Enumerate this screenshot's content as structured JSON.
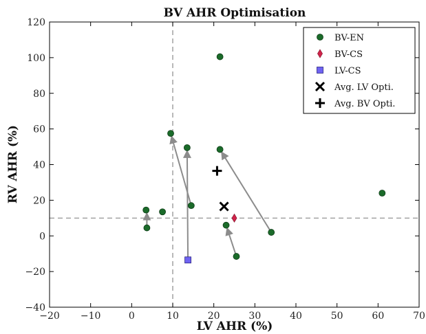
{
  "chart_data": {
    "type": "scatter",
    "title": "BV AHR Optimisation",
    "xlabel": "LV AHR (%)",
    "ylabel": "RV AHR (%)",
    "xlim": [
      -20,
      70
    ],
    "ylim": [
      -40,
      120
    ],
    "xticks": [
      -20,
      -10,
      0,
      10,
      20,
      30,
      40,
      50,
      60,
      70
    ],
    "xtick_labels": [
      "−20",
      "−10",
      "0",
      "10",
      "20",
      "30",
      "40",
      "50",
      "60",
      "70"
    ],
    "yticks": [
      -40,
      -20,
      0,
      20,
      40,
      60,
      80,
      100,
      120
    ],
    "ytick_labels": [
      "−40",
      "−20",
      "0",
      "20",
      "40",
      "60",
      "80",
      "100",
      "120"
    ],
    "grid": false,
    "legend_position": "top-right",
    "reference_lines": [
      {
        "orientation": "vertical",
        "x": 10,
        "style": "dashed",
        "color": "#888888"
      },
      {
        "orientation": "horizontal",
        "y": 10,
        "style": "dashed",
        "color": "#888888"
      }
    ],
    "series": [
      {
        "name": "BV-EN",
        "marker": "circle",
        "color": "#1b6b2a",
        "points": [
          {
            "x": 21.5,
            "y": 100.5
          },
          {
            "x": 9.5,
            "y": 57.5
          },
          {
            "x": 13.5,
            "y": 49.5
          },
          {
            "x": 21.5,
            "y": 48.5
          },
          {
            "x": 61,
            "y": 24
          },
          {
            "x": 14.5,
            "y": 17
          },
          {
            "x": 3.5,
            "y": 14.5
          },
          {
            "x": 7.5,
            "y": 13.5
          },
          {
            "x": 23,
            "y": 6
          },
          {
            "x": 34,
            "y": 2
          },
          {
            "x": 3.7,
            "y": 4.5
          },
          {
            "x": 25.5,
            "y": -11.5
          }
        ]
      },
      {
        "name": "BV-CS",
        "marker": "diamond",
        "color": "#d0234a",
        "points": [
          {
            "x": 25,
            "y": 10
          }
        ]
      },
      {
        "name": "LV-CS",
        "marker": "square",
        "color": "#6f63f2",
        "points": [
          {
            "x": 13.7,
            "y": -13.5
          }
        ]
      },
      {
        "name": "Avg. LV Opti.",
        "marker": "x",
        "color": "#000000",
        "points": [
          {
            "x": 22.5,
            "y": 16.5
          }
        ]
      },
      {
        "name": "Avg. BV Opti.",
        "marker": "plus",
        "color": "#000000",
        "points": [
          {
            "x": 20.8,
            "y": 36.5
          }
        ]
      }
    ],
    "arrows": [
      {
        "from": [
          3.7,
          4.5
        ],
        "to": [
          3.7,
          14.5
        ]
      },
      {
        "from": [
          14.5,
          17
        ],
        "to": [
          9.5,
          57.5
        ]
      },
      {
        "from": [
          13.7,
          -13.5
        ],
        "to": [
          13.5,
          49.5
        ]
      },
      {
        "from": [
          34,
          2
        ],
        "to": [
          21.5,
          48.5
        ]
      },
      {
        "from": [
          25.5,
          -11.5
        ],
        "to": [
          23,
          6
        ]
      }
    ]
  }
}
